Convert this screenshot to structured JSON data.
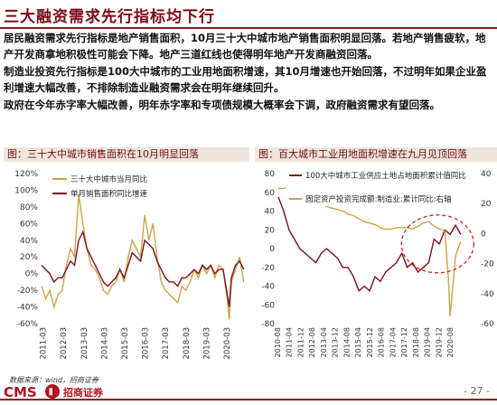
{
  "header": {
    "title": "三大融资需求先行指标均下行"
  },
  "paragraphs": [
    "居民融资需求先行指标是地产销售面积，10月三十大中城市地产销售面积明显回落。若地产销售疲软，地产开发商拿地积极性可能会下降。地产三道红线也使得明年地产开发商融资回落。",
    "制造业投资先行指标是100大中城市的工业用地面积增速，其10月增速也开始回落，不过明年如果企业盈利增速大幅改善，不排除制造业融资需求会在明年继续回升。",
    "政府在今年赤字率大幅改善，明年赤字率和专项债规模大概率会下调，政府融资需求有望回落。"
  ],
  "left_panel": {
    "title": "图：三十大中城市销售面积在10月明显回落"
  },
  "right_panel": {
    "title": "图：百大城市工业用地面积增速在九月见顶回落"
  },
  "footer": {
    "source": "数据来源：wind，招商证券",
    "logo_text": "CMS",
    "logo_cn": "招商证券",
    "page": "- 27 -"
  },
  "colors": {
    "accent": "#7a0a16",
    "series_dark": "#7a1020",
    "series_gold": "#c8a54a"
  },
  "chart_data": [
    {
      "type": "line",
      "x_ticks": [
        "2011-03",
        "2012-03",
        "2013-03",
        "2014-03",
        "2015-03",
        "2016-03",
        "2017-03",
        "2018-03",
        "2019-03",
        "2020-03"
      ],
      "x_range": [
        2011.0,
        2020.9
      ],
      "ylim": [
        -60,
        120
      ],
      "y_ticks": [
        "120%",
        "100%",
        "80%",
        "60%",
        "40%",
        "20%",
        "0%",
        "-20%",
        "-40%",
        "-60%"
      ],
      "legend_position": "top-left",
      "series": [
        {
          "name": "三十大中城市当月同比",
          "color": "#c8a54a",
          "x": [
            2011.0,
            2011.2,
            2011.4,
            2011.6,
            2011.8,
            2012.0,
            2012.2,
            2012.4,
            2012.6,
            2012.8,
            2013.0,
            2013.2,
            2013.4,
            2013.6,
            2013.8,
            2014.0,
            2014.2,
            2014.4,
            2014.6,
            2014.8,
            2015.0,
            2015.2,
            2015.4,
            2015.6,
            2015.8,
            2016.0,
            2016.2,
            2016.4,
            2016.6,
            2016.8,
            2017.0,
            2017.2,
            2017.4,
            2017.6,
            2017.8,
            2018.0,
            2018.2,
            2018.4,
            2018.6,
            2018.8,
            2019.0,
            2019.2,
            2019.4,
            2019.6,
            2019.8,
            2020.0,
            2020.1,
            2020.2,
            2020.4,
            2020.6,
            2020.8
          ],
          "values": [
            -15,
            -30,
            -20,
            -40,
            -25,
            -20,
            10,
            30,
            20,
            95,
            60,
            30,
            10,
            5,
            -5,
            -20,
            -25,
            -15,
            -10,
            5,
            -10,
            20,
            40,
            30,
            20,
            70,
            40,
            60,
            20,
            -10,
            -20,
            -25,
            -30,
            -35,
            -15,
            -20,
            -10,
            5,
            -5,
            10,
            0,
            10,
            -5,
            10,
            5,
            -30,
            -55,
            -10,
            5,
            20,
            -10
          ]
        },
        {
          "name": "单月销售面积同比增速",
          "color": "#7a1020",
          "x": [
            2011.0,
            2011.2,
            2011.4,
            2011.6,
            2011.8,
            2012.0,
            2012.2,
            2012.4,
            2012.6,
            2012.8,
            2013.0,
            2013.2,
            2013.4,
            2013.6,
            2013.8,
            2014.0,
            2014.2,
            2014.4,
            2014.6,
            2014.8,
            2015.0,
            2015.2,
            2015.4,
            2015.6,
            2015.8,
            2016.0,
            2016.2,
            2016.4,
            2016.6,
            2016.8,
            2017.0,
            2017.2,
            2017.4,
            2017.6,
            2017.8,
            2018.0,
            2018.2,
            2018.4,
            2018.6,
            2018.8,
            2019.0,
            2019.2,
            2019.4,
            2019.6,
            2019.8,
            2020.0,
            2020.1,
            2020.2,
            2020.4,
            2020.6,
            2020.8
          ],
          "values": [
            10,
            5,
            0,
            -10,
            -5,
            -5,
            5,
            15,
            10,
            40,
            50,
            30,
            20,
            10,
            0,
            -10,
            -15,
            -10,
            -5,
            5,
            -5,
            10,
            25,
            20,
            15,
            40,
            35,
            30,
            15,
            5,
            -5,
            -10,
            -10,
            -15,
            -5,
            -5,
            0,
            5,
            0,
            10,
            5,
            10,
            0,
            5,
            5,
            -25,
            -40,
            -5,
            10,
            15,
            5
          ]
        }
      ]
    },
    {
      "type": "line",
      "x_ticks": [
        "2010-08",
        "2011-04",
        "2011-12",
        "2012-08",
        "2013-04",
        "2013-12",
        "2014-08",
        "2015-04",
        "2015-12",
        "2016-08",
        "2017-04",
        "2017-12",
        "2018-08",
        "2019-04",
        "2019-12",
        "2020-08"
      ],
      "x_range": [
        2010.6,
        2020.9
      ],
      "ylim_left": [
        -80,
        80
      ],
      "y_ticks_left": [
        "80",
        "60",
        "40",
        "20",
        "0",
        "-20",
        "-40",
        "-60",
        "-80"
      ],
      "ylim_right": [
        -60,
        40
      ],
      "y_ticks_right": [
        "40",
        "20",
        "0",
        "-20",
        "-40",
        "-60"
      ],
      "legend_position": "top-left",
      "annotation": "dashed-ellipse-around-2019-2020-peak",
      "series": [
        {
          "name": "100大中城市工业供应土地占地面积累计值同比",
          "color": "#7a1020",
          "axis": "left",
          "x": [
            2010.6,
            2010.9,
            2011.2,
            2011.5,
            2011.8,
            2012.1,
            2012.4,
            2012.7,
            2013.0,
            2013.3,
            2013.6,
            2013.9,
            2014.2,
            2014.5,
            2014.8,
            2015.1,
            2015.4,
            2015.7,
            2016.0,
            2016.3,
            2016.6,
            2016.9,
            2017.2,
            2017.5,
            2017.8,
            2018.1,
            2018.4,
            2018.7,
            2019.0,
            2019.3,
            2019.6,
            2019.9,
            2020.2,
            2020.5,
            2020.8
          ],
          "values": [
            55,
            40,
            20,
            10,
            0,
            -5,
            -10,
            -15,
            -5,
            0,
            -5,
            -10,
            -20,
            -20,
            -30,
            -45,
            -40,
            -45,
            -30,
            -35,
            -25,
            -20,
            -15,
            -5,
            -20,
            -15,
            -25,
            -20,
            -15,
            10,
            5,
            20,
            15,
            25,
            15
          ]
        },
        {
          "name": "固定资产投资完成额:制造业:累计同比:右轴",
          "color": "#c8a54a",
          "axis": "right",
          "x": [
            2010.6,
            2010.9,
            2011.2,
            2011.5,
            2011.8,
            2012.1,
            2012.4,
            2012.7,
            2013.0,
            2013.3,
            2013.6,
            2013.9,
            2014.2,
            2014.5,
            2014.8,
            2015.1,
            2015.4,
            2015.7,
            2016.0,
            2016.3,
            2016.6,
            2016.9,
            2017.2,
            2017.5,
            2017.8,
            2018.1,
            2018.4,
            2018.7,
            2019.0,
            2019.3,
            2019.6,
            2019.9,
            2020.1,
            2020.2,
            2020.5,
            2020.8
          ],
          "values": [
            30,
            30,
            32,
            30,
            28,
            26,
            24,
            22,
            20,
            18,
            17,
            16,
            15,
            13,
            12,
            10,
            8,
            7,
            6,
            4,
            3,
            3,
            4,
            4,
            4,
            3,
            5,
            7,
            8,
            5,
            3,
            2,
            -30,
            -55,
            -15,
            -5
          ]
        }
      ]
    }
  ]
}
